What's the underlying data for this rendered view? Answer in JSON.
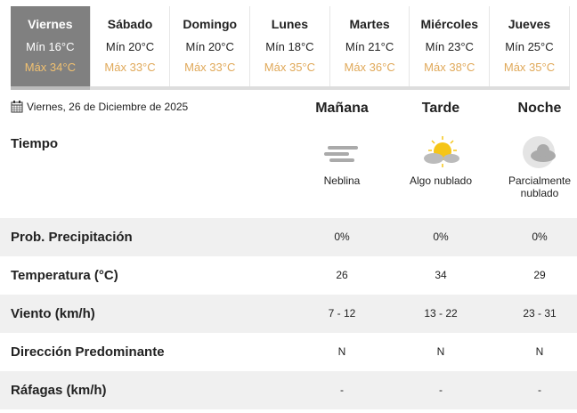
{
  "days": [
    {
      "day": "Viernes",
      "min": "Mín 16°C",
      "max": "Máx 34°C",
      "active": true
    },
    {
      "day": "Sábado",
      "min": "Mín 20°C",
      "max": "Máx 33°C"
    },
    {
      "day": "Domingo",
      "min": "Mín 20°C",
      "max": "Máx 33°C"
    },
    {
      "day": "Lunes",
      "min": "Mín 18°C",
      "max": "Máx 35°C"
    },
    {
      "day": "Martes",
      "min": "Mín 21°C",
      "max": "Máx 36°C"
    },
    {
      "day": "Miércoles",
      "min": "Mín 23°C",
      "max": "Máx 38°C"
    },
    {
      "day": "Jueves",
      "min": "Mín 25°C",
      "max": "Máx 35°C"
    }
  ],
  "date": "Viernes, 26 de Diciembre de 2025",
  "periods": [
    "Mañana",
    "Tarde",
    "Noche"
  ],
  "tiempo_label": "Tiempo",
  "conditions": [
    {
      "text": "Neblina",
      "icon": "fog-icon"
    },
    {
      "text": "Algo nublado",
      "icon": "partly-sunny-icon"
    },
    {
      "text": "Parcialmente nublado",
      "icon": "night-cloudy-icon"
    }
  ],
  "rows": [
    {
      "label": "Prob. Precipitación",
      "values": [
        "0%",
        "0%",
        "0%"
      ]
    },
    {
      "label": "Temperatura (°C)",
      "values": [
        "26",
        "34",
        "29"
      ]
    },
    {
      "label": "Viento (km/h)",
      "values": [
        "7 - 12",
        "13 - 22",
        "23 - 31"
      ]
    },
    {
      "label": "Dirección Predominante",
      "values": [
        "N",
        "N",
        "N"
      ]
    },
    {
      "label": "Ráfagas (km/h)",
      "values": [
        "-",
        "-",
        "-"
      ]
    }
  ],
  "colors": {
    "active_tab": "#808080",
    "max_temp": "#e0a95a",
    "row_alt": "#f0f0f0"
  }
}
